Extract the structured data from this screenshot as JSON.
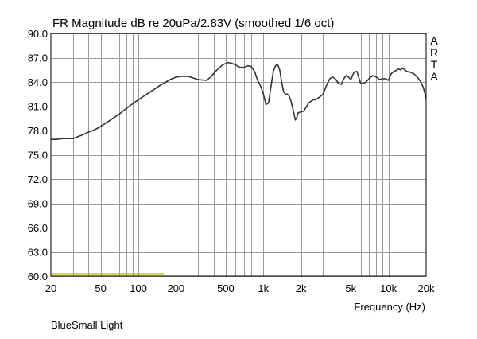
{
  "chart_data": {
    "type": "line",
    "title": "FR Magnitude dB re 20uPa/2.83V (smoothed 1/6 oct)",
    "xlabel": "Frequency (Hz)",
    "ylabel": "",
    "x_scale": "log",
    "xlim": [
      20,
      20000
    ],
    "ylim": [
      60,
      90
    ],
    "grid": true,
    "y_ticks": [
      90.0,
      87.0,
      84.0,
      81.0,
      78.0,
      75.0,
      72.0,
      69.0,
      66.0,
      63.0,
      60.0
    ],
    "y_tick_labels": [
      "90.0",
      "87.0",
      "84.0",
      "81.0",
      "78.0",
      "75.0",
      "72.0",
      "69.0",
      "66.0",
      "63.0",
      "60.0"
    ],
    "x_tick_values": [
      20,
      50,
      100,
      200,
      500,
      1000,
      2000,
      5000,
      10000,
      20000
    ],
    "x_tick_labels": [
      "20",
      "50",
      "100",
      "200",
      "500",
      "1k",
      "2k",
      "5k",
      "10k",
      "20k"
    ],
    "watermark_letters": [
      "A",
      "R",
      "T",
      "A"
    ],
    "caption": "BlueSmall Light",
    "series": [
      {
        "color": "#333333",
        "x": [
          20,
          22,
          25,
          30,
          35,
          40,
          45,
          50,
          60,
          70,
          80,
          90,
          100,
          120,
          150,
          180,
          200,
          220,
          250,
          300,
          350,
          380,
          420,
          470,
          520,
          560,
          600,
          650,
          700,
          750,
          800,
          850,
          900,
          950,
          1000,
          1050,
          1100,
          1150,
          1200,
          1250,
          1300,
          1350,
          1400,
          1450,
          1500,
          1550,
          1600,
          1650,
          1700,
          1750,
          1800,
          1850,
          1900,
          2000,
          2100,
          2200,
          2300,
          2400,
          2500,
          2600,
          2800,
          3000,
          3200,
          3400,
          3600,
          3800,
          4000,
          4200,
          4400,
          4600,
          4800,
          5000,
          5300,
          5600,
          6000,
          6300,
          6600,
          7000,
          7500,
          8000,
          8500,
          9000,
          9500,
          10000,
          10500,
          11000,
          11500,
          12000,
          12500,
          13000,
          14000,
          15000,
          16000,
          17000,
          18000,
          19000,
          20000
        ],
        "y": [
          76.9,
          76.9,
          77.0,
          77.0,
          77.4,
          77.8,
          78.1,
          78.5,
          79.3,
          80.0,
          80.7,
          81.3,
          81.8,
          82.6,
          83.6,
          84.3,
          84.6,
          84.7,
          84.7,
          84.3,
          84.2,
          84.6,
          85.4,
          86.1,
          86.4,
          86.3,
          86.1,
          85.8,
          85.8,
          86.0,
          85.9,
          85.3,
          84.2,
          83.5,
          82.5,
          81.2,
          81.4,
          83.5,
          85.3,
          86.0,
          86.2,
          85.5,
          84.0,
          82.8,
          82.5,
          82.5,
          82.3,
          81.8,
          81.0,
          80.2,
          79.3,
          79.6,
          80.2,
          80.3,
          80.4,
          80.9,
          81.4,
          81.6,
          81.8,
          81.8,
          82.1,
          82.5,
          83.6,
          84.4,
          84.6,
          84.3,
          83.8,
          83.7,
          84.4,
          84.8,
          84.6,
          84.3,
          85.2,
          85.3,
          83.8,
          83.8,
          84.0,
          84.4,
          84.8,
          84.6,
          84.3,
          84.4,
          84.4,
          84.2,
          85.0,
          85.3,
          85.4,
          85.6,
          85.5,
          85.7,
          85.3,
          85.2,
          85.0,
          84.6,
          84.1,
          83.3,
          82.0
        ]
      },
      {
        "color": "#cccc00",
        "x": [
          20,
          160
        ],
        "y": [
          60.3,
          60.3
        ]
      }
    ]
  }
}
